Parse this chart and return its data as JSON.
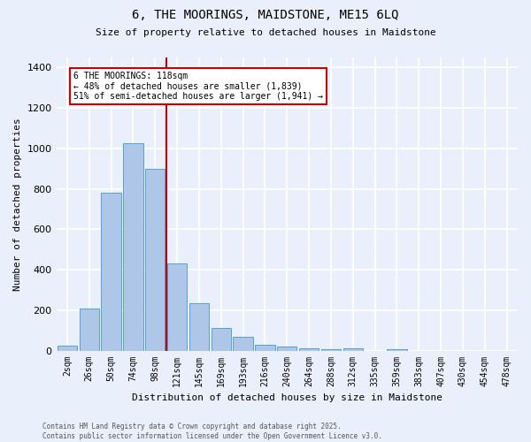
{
  "title_line1": "6, THE MOORINGS, MAIDSTONE, ME15 6LQ",
  "title_line2": "Size of property relative to detached houses in Maidstone",
  "xlabel": "Distribution of detached houses by size in Maidstone",
  "ylabel": "Number of detached properties",
  "footer_line1": "Contains HM Land Registry data © Crown copyright and database right 2025.",
  "footer_line2": "Contains public sector information licensed under the Open Government Licence v3.0.",
  "bar_labels": [
    "2sqm",
    "26sqm",
    "50sqm",
    "74sqm",
    "98sqm",
    "121sqm",
    "145sqm",
    "169sqm",
    "193sqm",
    "216sqm",
    "240sqm",
    "264sqm",
    "288sqm",
    "312sqm",
    "335sqm",
    "359sqm",
    "383sqm",
    "407sqm",
    "430sqm",
    "454sqm",
    "478sqm"
  ],
  "bar_values": [
    25,
    210,
    780,
    1025,
    900,
    430,
    235,
    110,
    70,
    27,
    20,
    10,
    5,
    10,
    0,
    5,
    0,
    0,
    0,
    0,
    0
  ],
  "bar_color": "#aec6e8",
  "bar_edge_color": "#5a9fd4",
  "background_color": "#eaf0fb",
  "grid_color": "#ffffff",
  "vline_index": 5,
  "vline_color": "#cc0000",
  "annotation_text": "6 THE MOORINGS: 118sqm\n← 48% of detached houses are smaller (1,839)\n51% of semi-detached houses are larger (1,941) →",
  "annotation_box_color": "#ffffff",
  "annotation_box_edge": "#cc0000",
  "ylim": [
    0,
    1450
  ],
  "yticks": [
    0,
    200,
    400,
    600,
    800,
    1000,
    1200,
    1400
  ]
}
